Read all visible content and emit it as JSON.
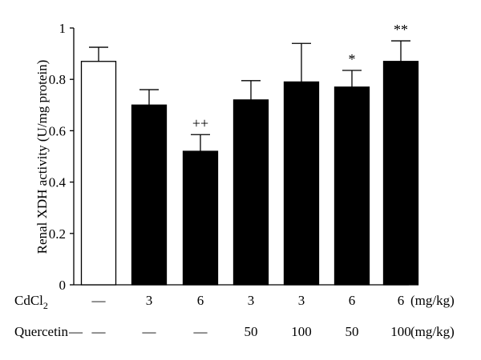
{
  "chart_data": {
    "type": "bar",
    "ylabel": "Renal XDH activity (U/mg protein)",
    "ylim": [
      0,
      1
    ],
    "yticks": [
      "0",
      "0.2",
      "0.4",
      "0.6",
      "0.8",
      "1"
    ],
    "ytick_values": [
      0,
      0.2,
      0.4,
      0.6,
      0.8,
      1
    ],
    "grid": false,
    "bars": [
      {
        "value": 0.87,
        "error": 0.055,
        "fill": "white",
        "annotation": "",
        "cdcl2": "—",
        "quercetin": "—"
      },
      {
        "value": 0.7,
        "error": 0.06,
        "fill": "black",
        "annotation": "",
        "cdcl2": "3",
        "quercetin": "—"
      },
      {
        "value": 0.52,
        "error": 0.065,
        "fill": "black",
        "annotation": "++",
        "cdcl2": "6",
        "quercetin": "—"
      },
      {
        "value": 0.72,
        "error": 0.075,
        "fill": "black",
        "annotation": "",
        "cdcl2": "3",
        "quercetin": "50"
      },
      {
        "value": 0.79,
        "error": 0.15,
        "fill": "black",
        "annotation": "",
        "cdcl2": "3",
        "quercetin": "100"
      },
      {
        "value": 0.77,
        "error": 0.065,
        "fill": "black",
        "annotation": "*",
        "cdcl2": "6",
        "quercetin": "50"
      },
      {
        "value": 0.87,
        "error": 0.08,
        "fill": "black",
        "annotation": "**",
        "cdcl2": "6",
        "quercetin": "100"
      }
    ],
    "row_labels": {
      "cdcl2_prefix": "CdCl",
      "cdcl2_subscript": "2",
      "cdcl2_unit": "(mg/kg)",
      "quercetin_label": "Quercetin",
      "quercetin_lead_dash": "—",
      "quercetin_unit": "(mg/kg)"
    }
  }
}
